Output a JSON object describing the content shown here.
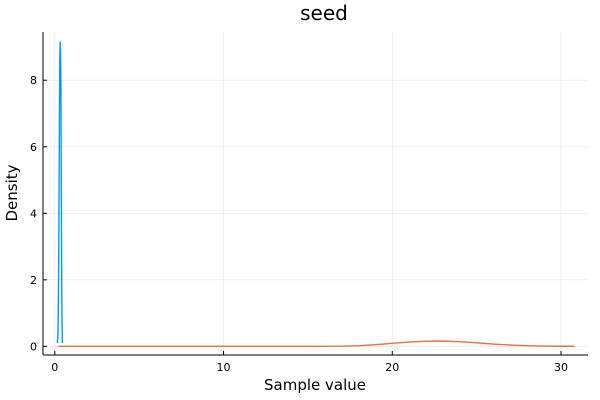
{
  "chart_data": {
    "type": "line",
    "title": "seed",
    "xlabel": "Sample value",
    "ylabel": "Density",
    "xlim": [
      -0.7,
      31.6
    ],
    "ylim": [
      -0.26,
      9.45
    ],
    "x_ticks": [
      0,
      10,
      20,
      30
    ],
    "y_ticks": [
      0,
      2,
      4,
      6,
      8
    ],
    "grid": true,
    "legend": "none",
    "series": [
      {
        "color": "#009AFA",
        "points": [
          [
            0.15,
            0.1
          ],
          [
            0.18,
            0.3
          ],
          [
            0.2,
            0.8
          ],
          [
            0.23,
            2.5
          ],
          [
            0.26,
            5.5
          ],
          [
            0.28,
            7.6
          ],
          [
            0.3,
            8.7
          ],
          [
            0.32,
            9.15
          ],
          [
            0.34,
            8.9
          ],
          [
            0.36,
            7.8
          ],
          [
            0.38,
            5.5
          ],
          [
            0.4,
            2.8
          ],
          [
            0.42,
            1.0
          ],
          [
            0.45,
            0.1
          ]
        ]
      },
      {
        "color": "#E26F46",
        "points": [
          [
            0.2,
            0.0
          ],
          [
            10,
            0.0
          ],
          [
            15,
            0.001
          ],
          [
            17,
            0.006
          ],
          [
            18,
            0.02
          ],
          [
            19,
            0.05
          ],
          [
            20,
            0.09
          ],
          [
            21,
            0.13
          ],
          [
            22,
            0.155
          ],
          [
            22.5,
            0.16
          ],
          [
            23,
            0.157
          ],
          [
            24,
            0.14
          ],
          [
            25,
            0.105
          ],
          [
            26,
            0.07
          ],
          [
            27,
            0.04
          ],
          [
            28,
            0.02
          ],
          [
            29,
            0.008
          ],
          [
            30,
            0.003
          ],
          [
            30.8,
            0.001
          ]
        ]
      }
    ]
  }
}
